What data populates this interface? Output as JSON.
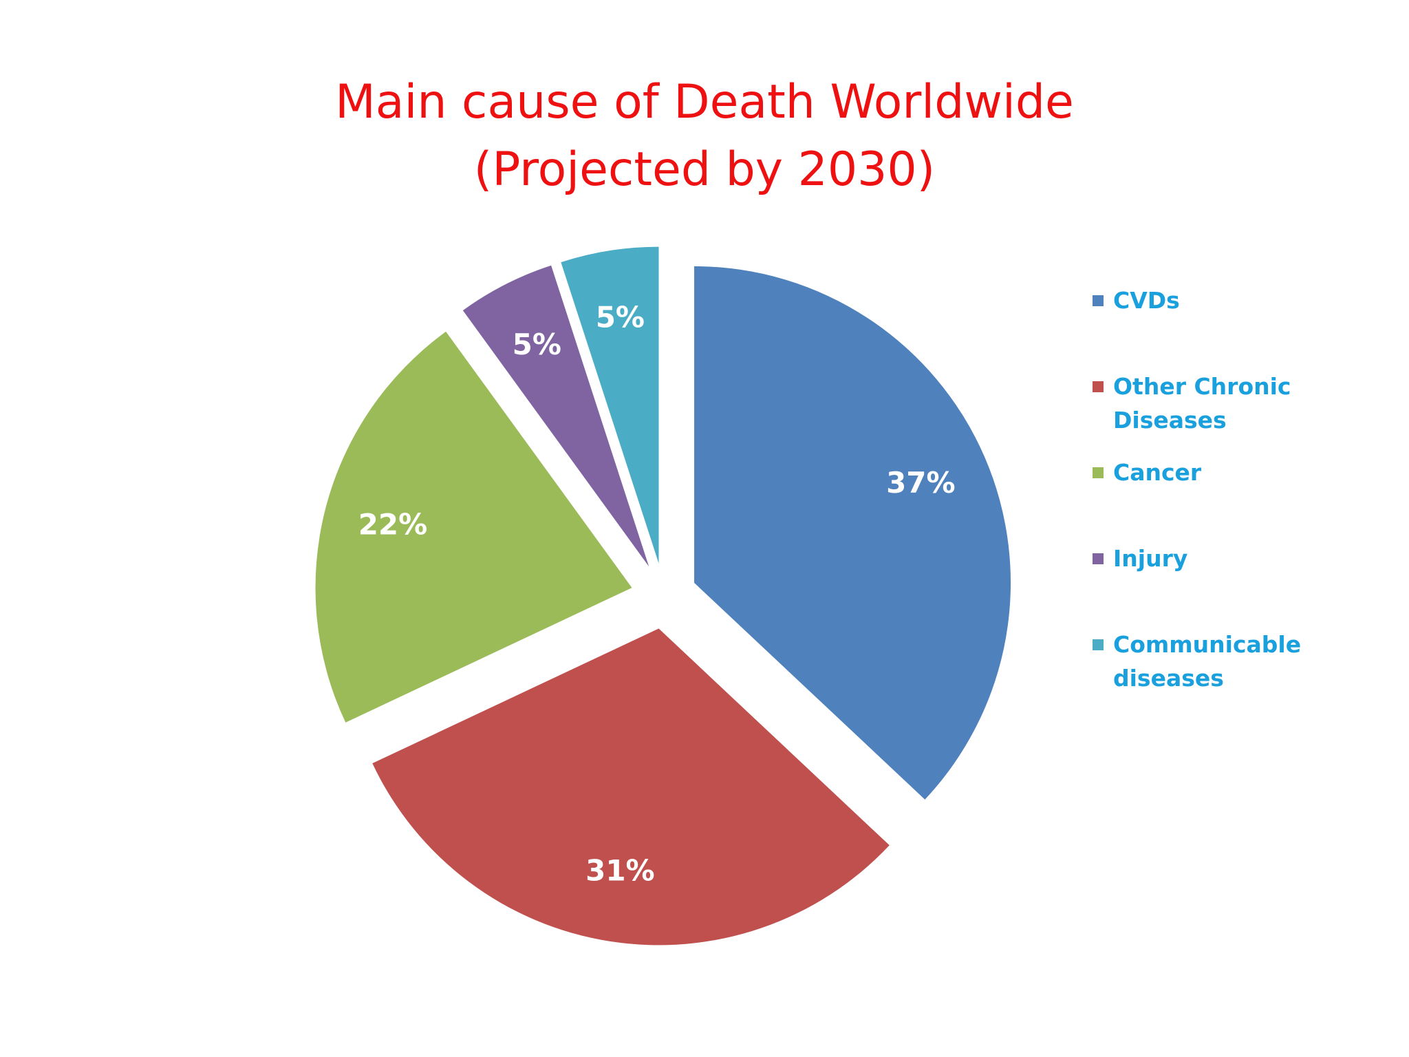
{
  "title_lines": [
    "Main cause of Death Worldwide",
    "(Projected by 2030)"
  ],
  "colors": {
    "title": "#ee1111",
    "legend_text": "#1aa0dd",
    "slice_label": "#ffffff"
  },
  "chart_data": {
    "type": "pie",
    "title": "Main cause of Death Worldwide (Projected by 2030)",
    "categories": [
      "CVDs",
      "Other Chronic Diseases",
      "Cancer",
      "Injury",
      "Communicable diseases"
    ],
    "values": [
      37,
      31,
      22,
      5,
      5
    ],
    "value_labels": [
      "37%",
      "31%",
      "22%",
      "5%",
      "5%"
    ],
    "colors": [
      "#4f81bd",
      "#c0504d",
      "#9bbb59",
      "#8064a2",
      "#4bacc6"
    ],
    "exploded": true,
    "legend_position": "right"
  }
}
